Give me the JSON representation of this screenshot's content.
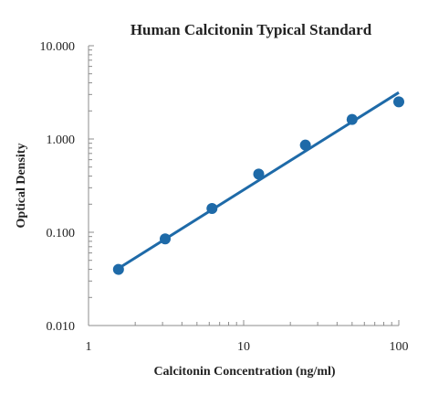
{
  "chart_data": {
    "type": "scatter",
    "title": "Human Calcitonin Typical Standard",
    "xlabel": "Calcitonin Concentration (ng/ml)",
    "ylabel": "Optical Density",
    "x_scale": "log",
    "y_scale": "log",
    "xlim": [
      1,
      100
    ],
    "ylim": [
      0.01,
      10
    ],
    "x_ticks": [
      "1",
      "10",
      "100"
    ],
    "y_ticks": [
      "0.010",
      "0.100",
      "1.000",
      "10.000"
    ],
    "grid": false,
    "series": [
      {
        "points": [
          {
            "x": 1.56,
            "y": 0.04
          },
          {
            "x": 3.12,
            "y": 0.085
          },
          {
            "x": 6.25,
            "y": 0.18
          },
          {
            "x": 12.5,
            "y": 0.42
          },
          {
            "x": 25,
            "y": 0.86
          },
          {
            "x": 50,
            "y": 1.62
          },
          {
            "x": 100,
            "y": 2.5
          }
        ],
        "trendline": {
          "type": "power",
          "from": [
            1.56,
            0.041
          ],
          "to": [
            100,
            3.15
          ]
        }
      }
    ],
    "colors": {
      "marker": "#1e6aa8",
      "trendline": "#1e6aa8",
      "axis": "#8c8c8c"
    }
  }
}
